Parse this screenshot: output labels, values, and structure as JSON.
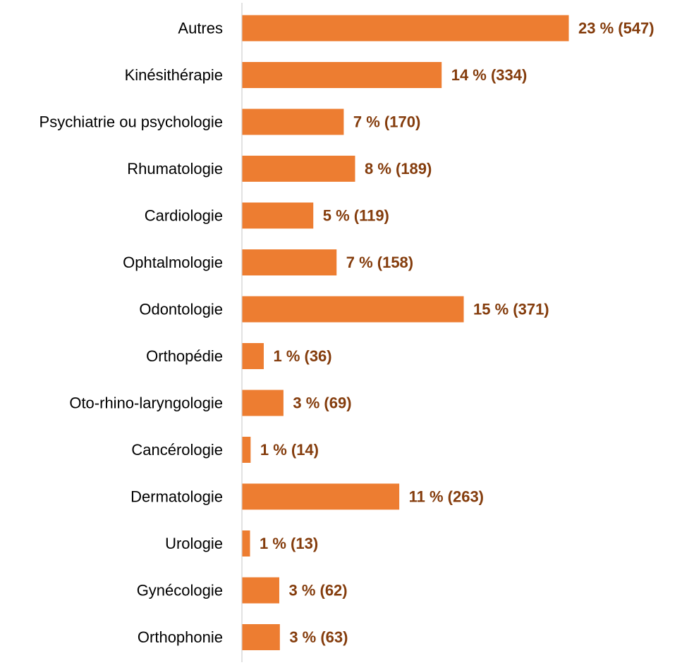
{
  "chart_data": {
    "type": "bar",
    "orientation": "horizontal",
    "title": "",
    "xlabel": "",
    "ylabel": "",
    "categories": [
      "Autres",
      "Kinésithérapie",
      "Psychiatrie ou psychologie",
      "Rhumatologie",
      "Cardiologie",
      "Ophtalmologie",
      "Odontologie",
      "Orthopédie",
      "Oto-rhino-laryngologie",
      "Cancérologie",
      "Dermatologie",
      "Urologie",
      "Gynécologie",
      "Orthophonie"
    ],
    "values": [
      547,
      334,
      170,
      189,
      119,
      158,
      371,
      36,
      69,
      14,
      263,
      13,
      62,
      63
    ],
    "data_labels": [
      "23 % (547)",
      "14 % (334)",
      "7 % (170)",
      "8 % (189)",
      "5 % (119)",
      "7 % (158)",
      "15 % (371)",
      "1 % (36)",
      "3 % (69)",
      "1 % (14)",
      "11 % (263)",
      "1 % (13)",
      "3 % (62)",
      "3 % (63)"
    ],
    "xlim": [
      0,
      547
    ],
    "grid": false,
    "legend": "none",
    "colors": {
      "bar": "#ED7D31",
      "data_label": "#843C0C",
      "axis": "#D9D9D9",
      "category_label": "#000000"
    }
  }
}
